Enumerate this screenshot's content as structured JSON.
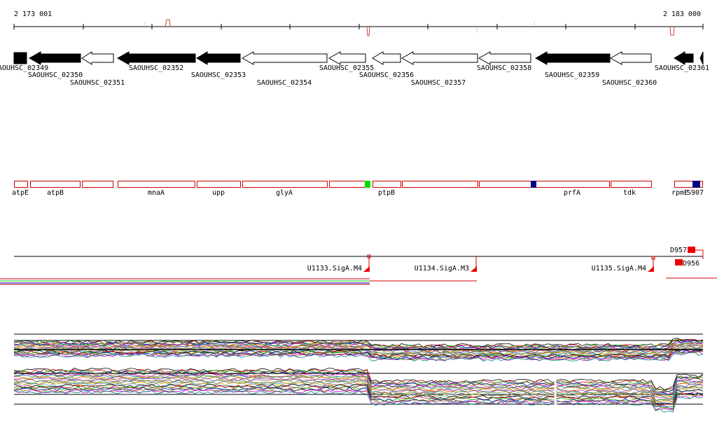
{
  "ruler": {
    "start_label": "2 173 001",
    "end_label": "2 183 000"
  },
  "genes": [
    {
      "id": "SAOUHSC_02349",
      "strand": "-",
      "fill": "black",
      "label_row": 0
    },
    {
      "id": "SAOUHSC_02350",
      "strand": "-",
      "fill": "black",
      "label_row": 1
    },
    {
      "id": "SAOUHSC_02351",
      "strand": "-",
      "fill": "white",
      "label_row": 2
    },
    {
      "id": "SAOUHSC_02352",
      "strand": "-",
      "fill": "black",
      "label_row": 0
    },
    {
      "id": "SAOUHSC_02353",
      "strand": "-",
      "fill": "black",
      "label_row": 1
    },
    {
      "id": "SAOUHSC_02354",
      "strand": "-",
      "fill": "white",
      "label_row": 2
    },
    {
      "id": "SAOUHSC_02355",
      "strand": "-",
      "fill": "white",
      "label_row": 0
    },
    {
      "id": "SAOUHSC_02356",
      "strand": "-",
      "fill": "white",
      "label_row": 1
    },
    {
      "id": "SAOUHSC_02357",
      "strand": "-",
      "fill": "white",
      "label_row": 2
    },
    {
      "id": "SAOUHSC_02358",
      "strand": "-",
      "fill": "white",
      "label_row": 0
    },
    {
      "id": "SAOUHSC_02359",
      "strand": "-",
      "fill": "black",
      "label_row": 1
    },
    {
      "id": "SAOUHSC_02360",
      "strand": "-",
      "fill": "white",
      "label_row": 2
    },
    {
      "id": "SAOUHSC_02361",
      "strand": "-",
      "fill": "black",
      "label_row": 0
    }
  ],
  "gene_names": [
    "atpE",
    "atpB",
    "mnaA",
    "upp",
    "glyA",
    "ptpB",
    "prfA",
    "tdk",
    "rpmE",
    "S907"
  ],
  "features": [
    {
      "id": "D957"
    },
    {
      "id": "D956"
    }
  ],
  "promoters": [
    {
      "label": "U1133.SigA.M4"
    },
    {
      "label": "U1134.SigA.M3"
    },
    {
      "label": "U1135.SigA.M4"
    }
  ],
  "colors": {
    "gene_outline": "#cc0000",
    "feature_red": "#ee0000",
    "marker_green": "#00dd00",
    "marker_navy": "#000080",
    "ruler_accent": "#c44a2a"
  }
}
